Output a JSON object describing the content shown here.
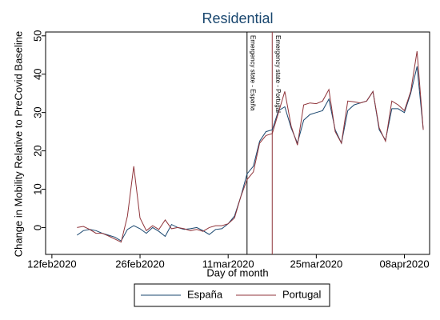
{
  "chart_data": {
    "type": "line",
    "title": "Residential",
    "x_label": "Day of month",
    "y_label": "Change in Mobility Relative to PreCovid Baseline",
    "x": [
      "2020-02-16",
      "2020-02-17",
      "2020-02-18",
      "2020-02-19",
      "2020-02-20",
      "2020-02-21",
      "2020-02-22",
      "2020-02-23",
      "2020-02-24",
      "2020-02-25",
      "2020-02-26",
      "2020-02-27",
      "2020-02-28",
      "2020-02-29",
      "2020-03-01",
      "2020-03-02",
      "2020-03-03",
      "2020-03-04",
      "2020-03-05",
      "2020-03-06",
      "2020-03-07",
      "2020-03-08",
      "2020-03-09",
      "2020-03-10",
      "2020-03-11",
      "2020-03-12",
      "2020-03-13",
      "2020-03-14",
      "2020-03-15",
      "2020-03-16",
      "2020-03-17",
      "2020-03-18",
      "2020-03-19",
      "2020-03-20",
      "2020-03-21",
      "2020-03-22",
      "2020-03-23",
      "2020-03-24",
      "2020-03-25",
      "2020-03-26",
      "2020-03-27",
      "2020-03-28",
      "2020-03-29",
      "2020-03-30",
      "2020-03-31",
      "2020-04-01",
      "2020-04-02",
      "2020-04-03",
      "2020-04-04",
      "2020-04-05",
      "2020-04-06",
      "2020-04-07",
      "2020-04-08",
      "2020-04-09",
      "2020-04-10",
      "2020-04-11"
    ],
    "series": [
      {
        "name": "España",
        "color": "#1a476f",
        "values": [
          -2,
          -0.8,
          -0.5,
          -0.8,
          -1.5,
          -2,
          -2.5,
          -3.5,
          -0.5,
          0.5,
          -0.3,
          -1.5,
          0,
          -1,
          -2.3,
          0.8,
          0,
          -0.5,
          -0.3,
          0,
          -0.8,
          -1.8,
          -0.5,
          -0.3,
          1,
          3,
          8,
          14,
          16,
          22.5,
          25,
          25.5,
          30.5,
          31.5,
          26,
          22,
          28,
          29.5,
          30,
          30.5,
          33.5,
          25.5,
          22,
          30.5,
          32,
          32.5,
          33,
          35.5,
          25.5,
          22.8,
          31,
          31,
          30,
          35,
          42,
          25.5
        ]
      },
      {
        "name": "Portugal",
        "color": "#90353b",
        "values": [
          0,
          0.3,
          -0.5,
          -1.5,
          -1.5,
          -2.2,
          -3,
          -3.8,
          3,
          16,
          2.5,
          -0.8,
          0.5,
          -0.5,
          2,
          -0.3,
          0,
          -0.3,
          -0.8,
          -0.5,
          -1,
          0,
          0.5,
          0.5,
          1,
          2.5,
          8,
          12.5,
          14.5,
          22,
          24,
          24.5,
          30,
          35.5,
          26.5,
          21.5,
          32,
          32.5,
          32.3,
          33,
          36,
          25,
          22,
          33,
          32.8,
          32.5,
          33,
          35.5,
          26,
          22.5,
          33,
          32,
          30.5,
          35.5,
          46,
          25.5
        ]
      }
    ],
    "xlim": [
      "2020-02-11",
      "2020-04-12"
    ],
    "xticks": [
      {
        "value": "2020-02-12",
        "label": "12feb2020"
      },
      {
        "value": "2020-02-26",
        "label": "26feb2020"
      },
      {
        "value": "2020-03-11",
        "label": "11mar2020"
      },
      {
        "value": "2020-03-25",
        "label": "25mar2020"
      },
      {
        "value": "2020-04-08",
        "label": "08apr2020"
      }
    ],
    "ylim": [
      -7,
      51
    ],
    "yticks": [
      0,
      10,
      20,
      30,
      40,
      50
    ],
    "annotations": [
      {
        "x": "2020-03-14",
        "label": "Emergency state - España",
        "color": "#000000"
      },
      {
        "x": "2020-03-18",
        "label": "Emergency state - Portugal",
        "color": "#90353b"
      }
    ],
    "legend": "bottom"
  }
}
